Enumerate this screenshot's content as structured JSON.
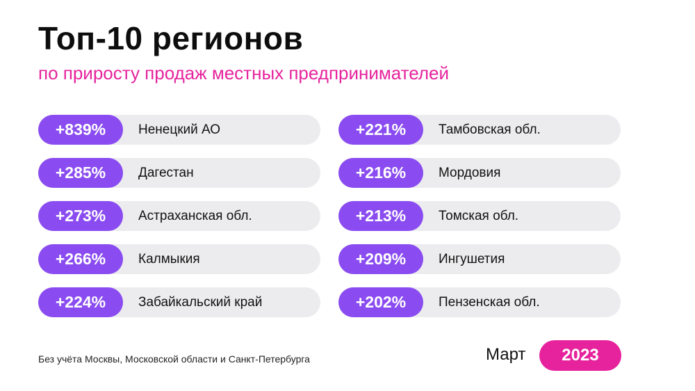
{
  "header": {
    "title": "Топ-10 регионов",
    "subtitle": "по приросту продаж местных предпринимателей"
  },
  "chart_data": {
    "type": "table",
    "title": "Топ-10 регионов",
    "subtitle": "по приросту продаж местных предпринимателей",
    "unit": "%",
    "columns": [
      {
        "rows": [
          {
            "growth": "+839%",
            "value": 839,
            "region": "Ненецкий АО"
          },
          {
            "growth": "+285%",
            "value": 285,
            "region": "Дагестан"
          },
          {
            "growth": "+273%",
            "value": 273,
            "region": "Астраханская обл."
          },
          {
            "growth": "+266%",
            "value": 266,
            "region": "Калмыкия"
          },
          {
            "growth": "+224%",
            "value": 224,
            "region": "Забайкальский край"
          }
        ]
      },
      {
        "rows": [
          {
            "growth": "+221%",
            "value": 221,
            "region": "Тамбовская обл."
          },
          {
            "growth": "+216%",
            "value": 216,
            "region": "Мордовия"
          },
          {
            "growth": "+213%",
            "value": 213,
            "region": "Томская обл."
          },
          {
            "growth": "+209%",
            "value": 209,
            "region": "Ингушетия"
          },
          {
            "growth": "+202%",
            "value": 202,
            "region": "Пензенская обл."
          }
        ]
      }
    ]
  },
  "footer": {
    "note": "Без учёта Москвы, Московской области и Санкт-Петербурга",
    "month": "Март",
    "year": "2023"
  },
  "colors": {
    "accent_pink": "#e6239d",
    "pill_purple": "#8a4cf0",
    "row_background": "#ececee",
    "text": "#111111"
  }
}
